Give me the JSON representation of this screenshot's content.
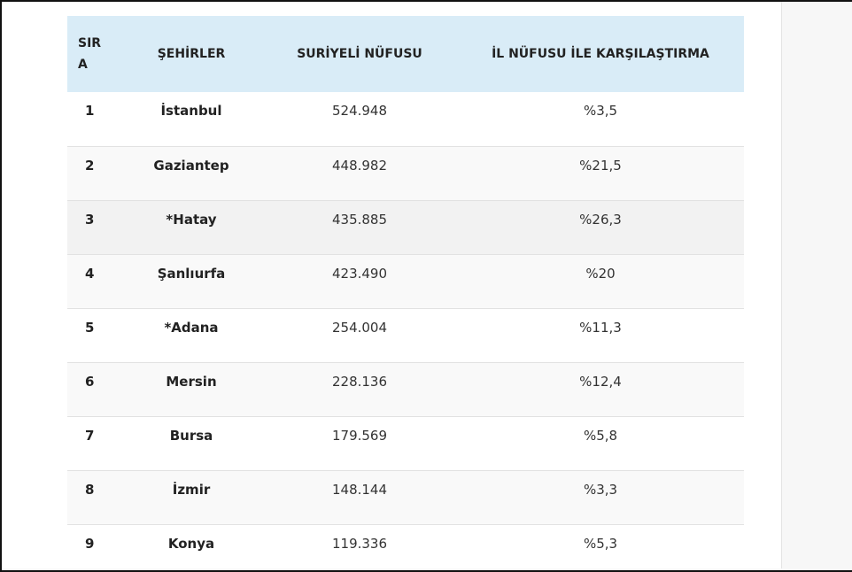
{
  "table": {
    "headers": {
      "rank": "SIRA",
      "city": "ŞEHİRLER",
      "population": "SURİYELİ NÜFUSU",
      "comparison": "İL NÜFUSU İLE KARŞILAŞTIRMA"
    },
    "rows": [
      {
        "rank": "1",
        "city": "İstanbul",
        "population": "524.948",
        "comparison": "%3,5"
      },
      {
        "rank": "2",
        "city": "Gaziantep",
        "population": "448.982",
        "comparison": "%21,5"
      },
      {
        "rank": "3",
        "city": "*Hatay",
        "population": "435.885",
        "comparison": "%26,3"
      },
      {
        "rank": "4",
        "city": "Şanlıurfa",
        "population": "423.490",
        "comparison": "%20"
      },
      {
        "rank": "5",
        "city": "*Adana",
        "population": "254.004",
        "comparison": "%11,3"
      },
      {
        "rank": "6",
        "city": "Mersin",
        "population": "228.136",
        "comparison": "%12,4"
      },
      {
        "rank": "7",
        "city": "Bursa",
        "population": "179.569",
        "comparison": "%5,8"
      },
      {
        "rank": "8",
        "city": "İzmir",
        "population": "148.144",
        "comparison": "%3,3"
      },
      {
        "rank": "9",
        "city": "Konya",
        "population": "119.336",
        "comparison": "%5,3"
      }
    ]
  }
}
